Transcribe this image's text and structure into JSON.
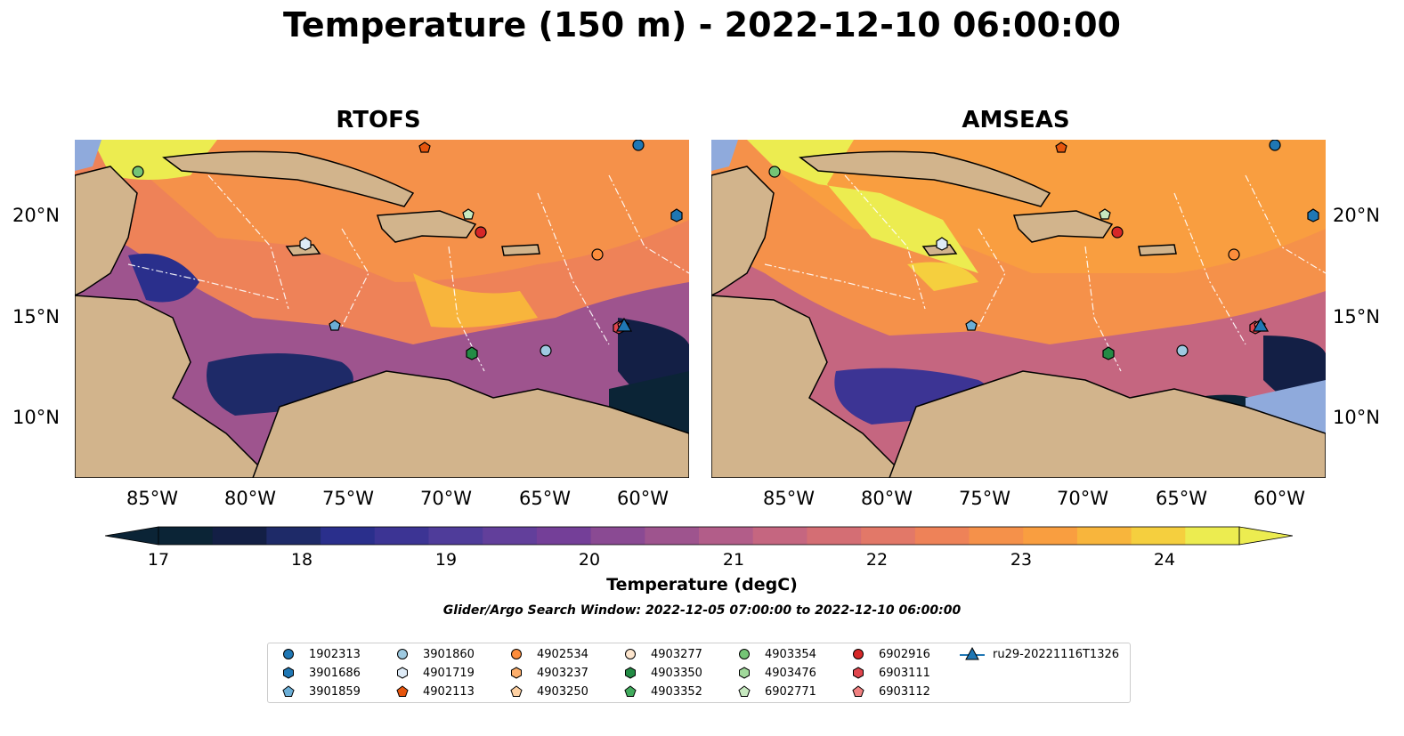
{
  "title": "Temperature (150 m) - 2022-12-10 06:00:00",
  "panels": [
    {
      "title": "RTOFS"
    },
    {
      "title": "AMSEAS"
    }
  ],
  "lat_ticks": [
    "20°N",
    "15°N",
    "10°N"
  ],
  "lon_ticks": [
    "85°W",
    "80°W",
    "75°W",
    "70°W",
    "65°W",
    "60°W"
  ],
  "colorbar": {
    "label": "Temperature (degC)",
    "ticks": [
      "17",
      "18",
      "19",
      "20",
      "21",
      "22",
      "23",
      "24"
    ],
    "colors": [
      "#0b2436",
      "#131f45",
      "#1e2a68",
      "#2a2f8c",
      "#3c3494",
      "#4f3c9a",
      "#623f9b",
      "#743f98",
      "#8a4a93",
      "#9e548e",
      "#b25d89",
      "#c56680",
      "#d46e74",
      "#e27868",
      "#ee8258",
      "#f5914a",
      "#f99e40",
      "#f8b53c",
      "#f5cf3e",
      "#ecec50"
    ]
  },
  "search_window": "Glider/Argo Search Window: 2022-12-05 07:00:00 to 2022-12-10 06:00:00",
  "legend": [
    {
      "label": "1902313",
      "marker": "circle",
      "color": "#1f77b4"
    },
    {
      "label": "3901686",
      "marker": "hexagon",
      "color": "#1f77b4"
    },
    {
      "label": "3901859",
      "marker": "pentagon",
      "color": "#6baed6"
    },
    {
      "label": "3901860",
      "marker": "circle",
      "color": "#9ecae1"
    },
    {
      "label": "4901719",
      "marker": "hexagon",
      "color": "#deebf7"
    },
    {
      "label": "4902113",
      "marker": "pentagon",
      "color": "#e6550d"
    },
    {
      "label": "4902534",
      "marker": "circle",
      "color": "#fd8d3c"
    },
    {
      "label": "4903237",
      "marker": "hexagon",
      "color": "#fdae6b"
    },
    {
      "label": "4903250",
      "marker": "pentagon",
      "color": "#fdd0a2"
    },
    {
      "label": "4903277",
      "marker": "circle",
      "color": "#fee6ce"
    },
    {
      "label": "4903350",
      "marker": "hexagon",
      "color": "#238b45"
    },
    {
      "label": "4903352",
      "marker": "pentagon",
      "color": "#41ab5d"
    },
    {
      "label": "4903354",
      "marker": "circle",
      "color": "#74c476"
    },
    {
      "label": "4903476",
      "marker": "hexagon",
      "color": "#a1d99b"
    },
    {
      "label": "6902771",
      "marker": "pentagon",
      "color": "#c7e9c0"
    },
    {
      "label": "6902916",
      "marker": "circle",
      "color": "#d62728"
    },
    {
      "label": "6903111",
      "marker": "hexagon",
      "color": "#e0454d"
    },
    {
      "label": "6903112",
      "marker": "pentagon",
      "color": "#f08080"
    },
    {
      "label": "ru29-20221116T1326",
      "marker": "triangle-line",
      "color": "#1f77b4"
    }
  ]
}
